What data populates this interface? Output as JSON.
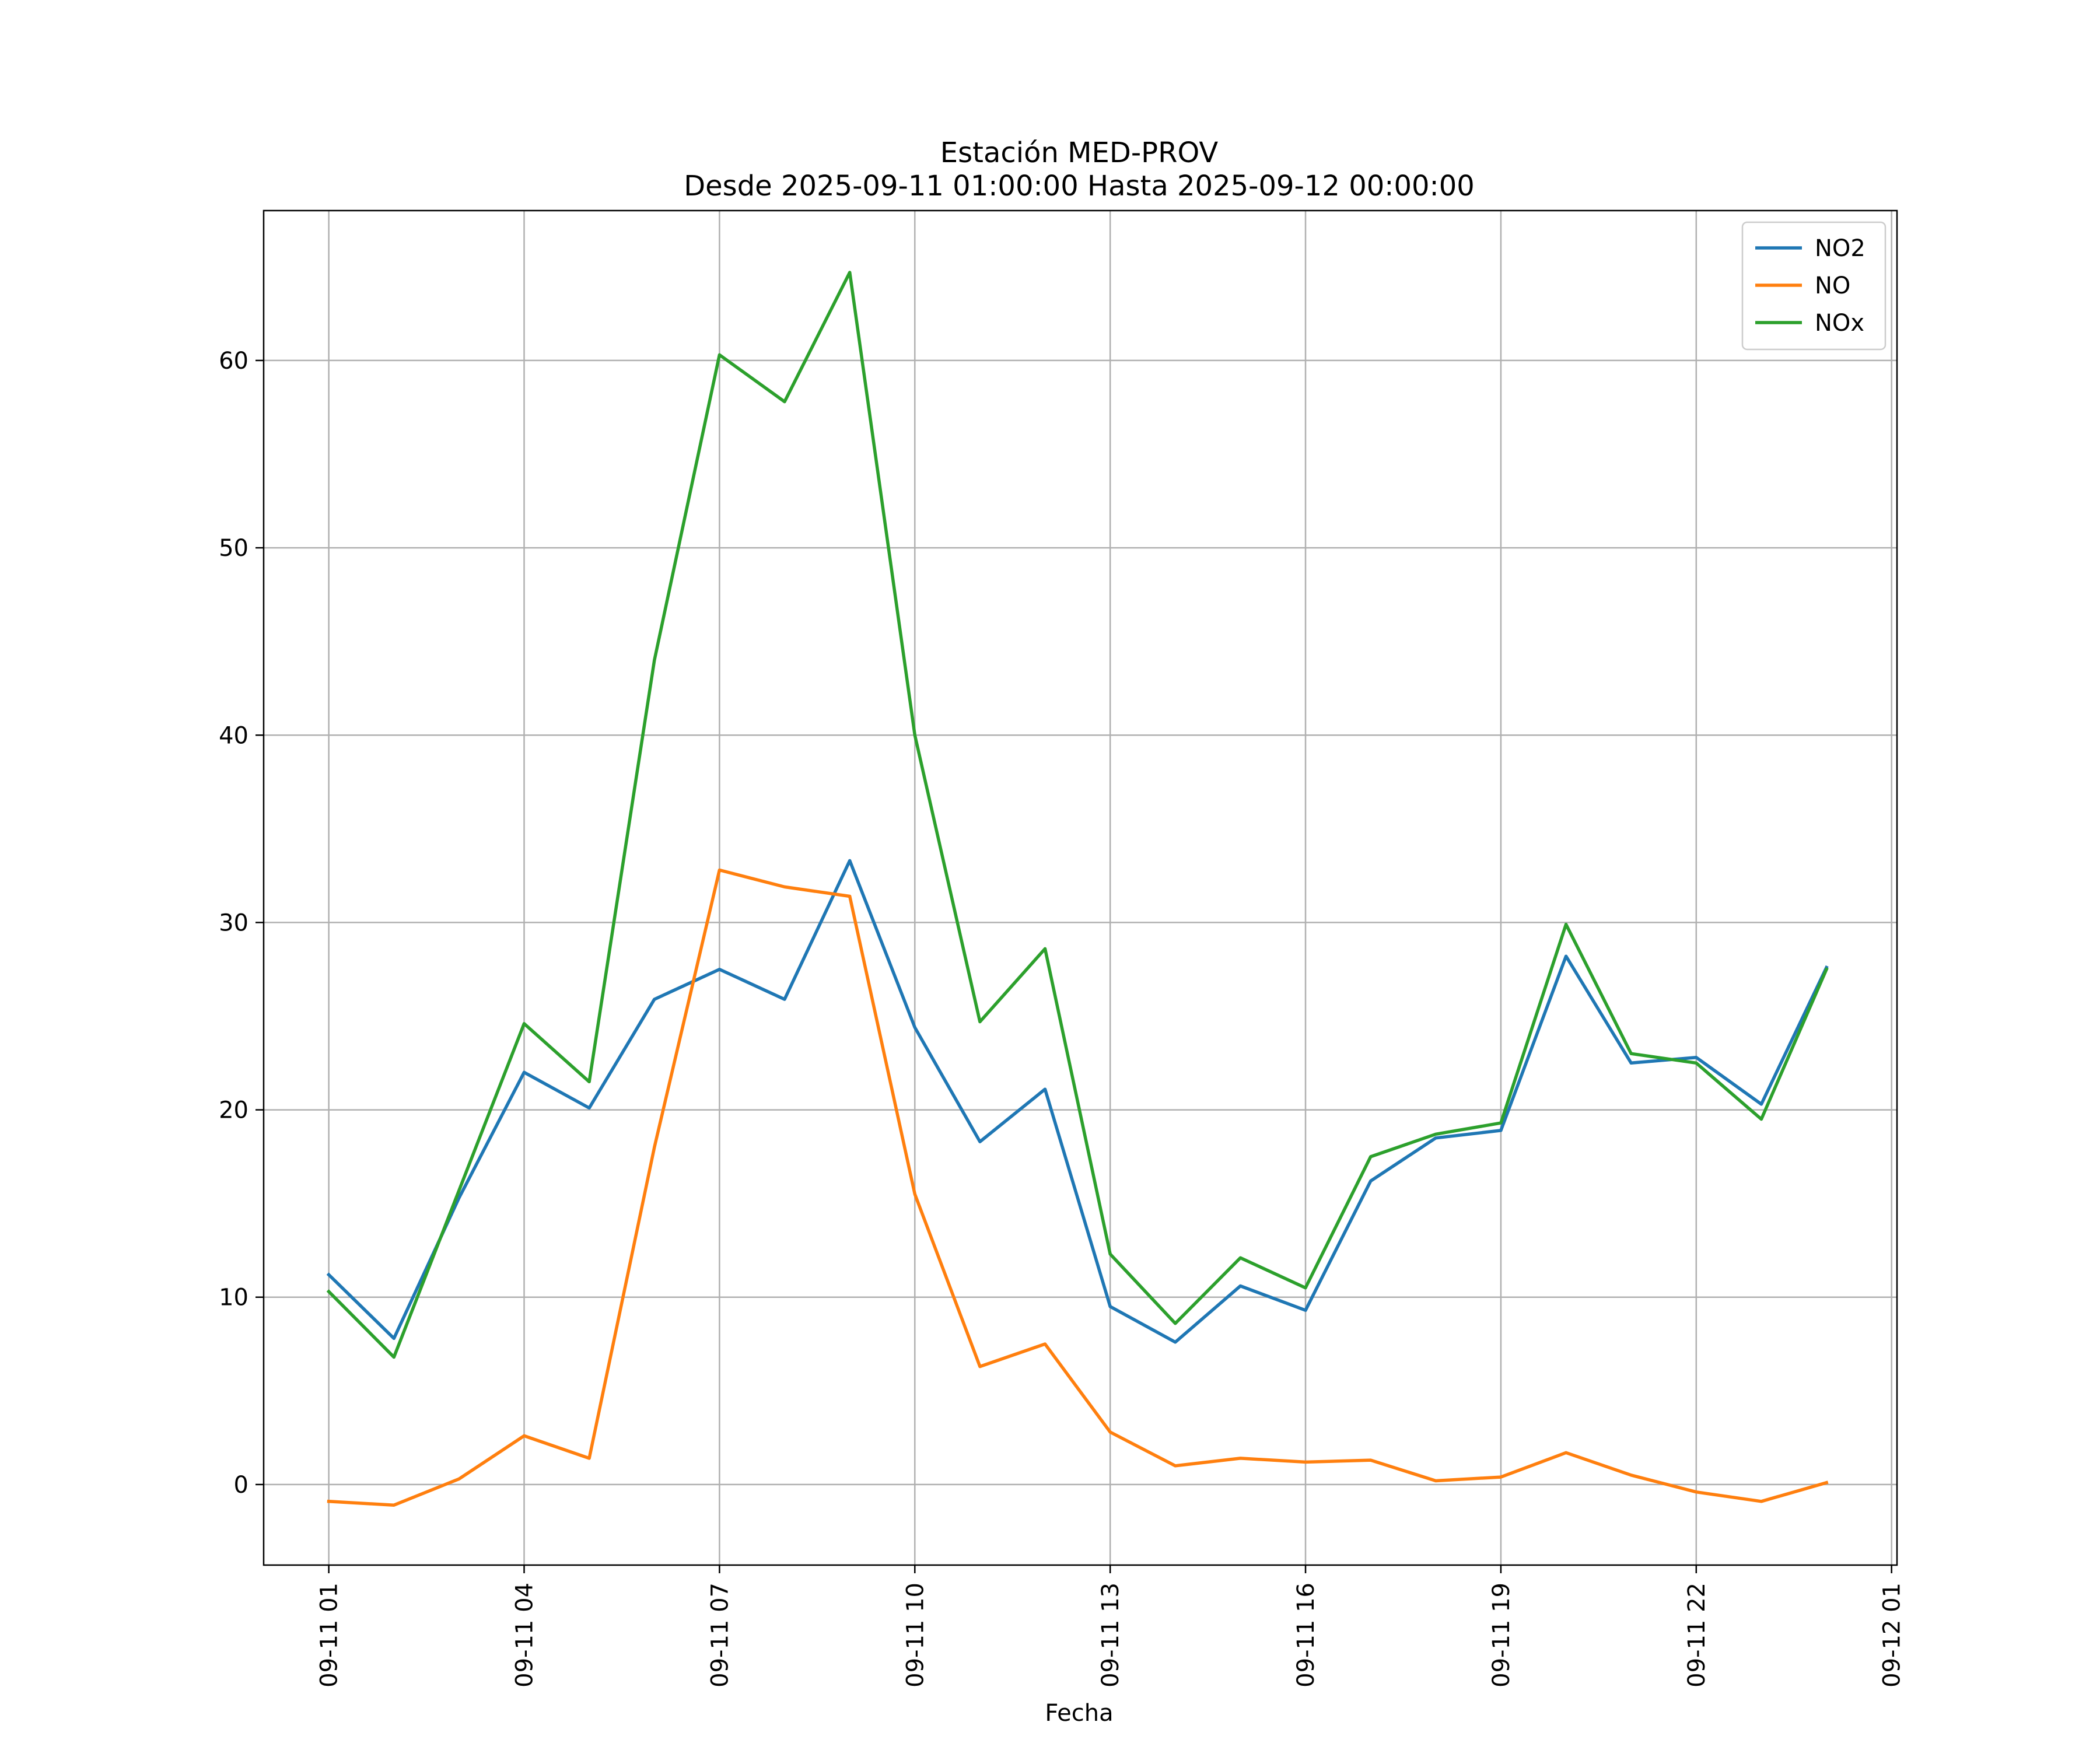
{
  "chart_data": {
    "type": "line",
    "title": "Estación MED-PROV",
    "subtitle": "Desde 2025-09-11 01:00:00 Hasta 2025-09-12 00:00:00",
    "xlabel": "Fecha",
    "ylabel": "",
    "x": [
      "2025-09-11 01:00",
      "2025-09-11 02:00",
      "2025-09-11 03:00",
      "2025-09-11 04:00",
      "2025-09-11 05:00",
      "2025-09-11 06:00",
      "2025-09-11 07:00",
      "2025-09-11 08:00",
      "2025-09-11 09:00",
      "2025-09-11 10:00",
      "2025-09-11 11:00",
      "2025-09-11 12:00",
      "2025-09-11 13:00",
      "2025-09-11 14:00",
      "2025-09-11 15:00",
      "2025-09-11 16:00",
      "2025-09-11 17:00",
      "2025-09-11 18:00",
      "2025-09-11 19:00",
      "2025-09-11 20:00",
      "2025-09-11 21:00",
      "2025-09-11 22:00",
      "2025-09-11 23:00",
      "2025-09-12 00:00"
    ],
    "xlim": [
      "2025-09-11 00:00",
      "2025-09-12 01:05"
    ],
    "ylim": [
      -4.3,
      68
    ],
    "x_ticks": [
      {
        "x": "2025-09-11 01:00",
        "label": "09-11 01"
      },
      {
        "x": "2025-09-11 04:00",
        "label": "09-11 04"
      },
      {
        "x": "2025-09-11 07:00",
        "label": "09-11 07"
      },
      {
        "x": "2025-09-11 10:00",
        "label": "09-11 10"
      },
      {
        "x": "2025-09-11 13:00",
        "label": "09-11 13"
      },
      {
        "x": "2025-09-11 16:00",
        "label": "09-11 16"
      },
      {
        "x": "2025-09-11 19:00",
        "label": "09-11 19"
      },
      {
        "x": "2025-09-11 22:00",
        "label": "09-11 22"
      },
      {
        "x": "2025-09-12 01:00",
        "label": "09-12 01"
      }
    ],
    "y_ticks": [
      0,
      10,
      20,
      30,
      40,
      50,
      60
    ],
    "grid": true,
    "legend": "top-right",
    "series": [
      {
        "name": "NO2",
        "color": "#1f77b4",
        "values": [
          11.2,
          7.8,
          15.3,
          22.0,
          20.1,
          25.9,
          27.5,
          25.9,
          33.3,
          24.4,
          18.3,
          21.1,
          9.5,
          7.6,
          10.6,
          9.3,
          16.2,
          18.5,
          18.9,
          28.2,
          22.5,
          22.8,
          20.3,
          27.6
        ]
      },
      {
        "name": "NO",
        "color": "#ff7f0e",
        "values": [
          -0.9,
          -1.1,
          0.3,
          2.6,
          1.4,
          18.0,
          32.8,
          31.9,
          31.4,
          15.5,
          6.3,
          7.5,
          2.8,
          1.0,
          1.4,
          1.2,
          1.3,
          0.2,
          0.4,
          1.7,
          0.5,
          -0.4,
          -0.9,
          0.1
        ]
      },
      {
        "name": "NOx",
        "color": "#2ca02c",
        "values": [
          10.3,
          6.8,
          15.7,
          24.6,
          21.5,
          44.0,
          60.3,
          57.8,
          64.7,
          40.0,
          24.7,
          28.6,
          12.3,
          8.6,
          12.1,
          10.5,
          17.5,
          18.7,
          19.3,
          29.9,
          23.0,
          22.5,
          19.5,
          27.5
        ]
      }
    ]
  }
}
